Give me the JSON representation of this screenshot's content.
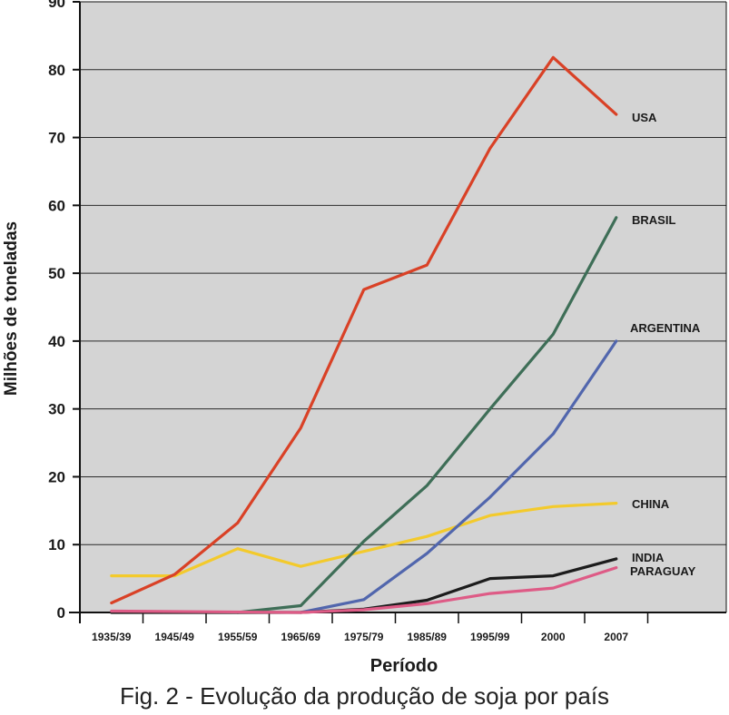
{
  "caption": "Fig. 2 - Evolução da produção de soja por país",
  "chart_data": {
    "type": "line",
    "xlabel": "Período",
    "ylabel": "Milhões de toneladas",
    "ylim": [
      0,
      90
    ],
    "yticks": [
      0,
      10,
      20,
      30,
      40,
      50,
      60,
      70,
      80,
      90
    ],
    "categories": [
      "1935/39",
      "1945/49",
      "1955/59",
      "1965/69",
      "1975/79",
      "1985/89",
      "1995/99",
      "2000",
      "2007"
    ],
    "grid": true,
    "background": "#d4d4d4",
    "series": [
      {
        "name": "USA",
        "color": "#d94126",
        "values": [
          [
            0.5,
            1.4
          ],
          [
            1.5,
            5.6
          ],
          [
            2.5,
            13.2
          ],
          [
            3.5,
            27.2
          ],
          [
            4.5,
            47.6
          ],
          [
            5.5,
            51.2
          ],
          [
            6.5,
            68.4
          ],
          [
            7.5,
            81.8
          ],
          [
            8.5,
            73.4
          ]
        ]
      },
      {
        "name": "BRASIL",
        "color": "#3e6e57",
        "values": [
          [
            2.5,
            0
          ],
          [
            3.5,
            1
          ],
          [
            4.5,
            10.5
          ],
          [
            5.5,
            18.7
          ],
          [
            6.5,
            30
          ],
          [
            7.5,
            41
          ],
          [
            8.5,
            58.2
          ]
        ]
      },
      {
        "name": "ARGENTINA",
        "color": "#5166ad",
        "values": [
          [
            3.5,
            0
          ],
          [
            4.5,
            1.9
          ],
          [
            5.5,
            8.7
          ],
          [
            6.5,
            17
          ],
          [
            7.5,
            26.3
          ],
          [
            8.5,
            40
          ]
        ]
      },
      {
        "name": "CHINA",
        "color": "#f3ca2c",
        "values": [
          [
            0.5,
            5.4
          ],
          [
            1.5,
            5.4
          ],
          [
            2.5,
            9.4
          ],
          [
            3.5,
            6.8
          ],
          [
            4.5,
            9
          ],
          [
            5.5,
            11.2
          ],
          [
            6.5,
            14.3
          ],
          [
            7.5,
            15.6
          ],
          [
            8.5,
            16.1
          ]
        ]
      },
      {
        "name": "INDIA",
        "color": "#1c1c1c",
        "values": [
          [
            0.5,
            0
          ],
          [
            3.5,
            0
          ],
          [
            4.5,
            0.5
          ],
          [
            5.5,
            1.8
          ],
          [
            6.5,
            5
          ],
          [
            7.5,
            5.4
          ],
          [
            8.5,
            7.9
          ]
        ]
      },
      {
        "name": "PARAGUAY",
        "color": "#de5b86",
        "values": [
          [
            0.5,
            0.2
          ],
          [
            3.5,
            0
          ],
          [
            4.5,
            0.4
          ],
          [
            5.5,
            1.3
          ],
          [
            6.5,
            2.8
          ],
          [
            7.5,
            3.6
          ],
          [
            8.5,
            6.6
          ]
        ]
      }
    ]
  }
}
